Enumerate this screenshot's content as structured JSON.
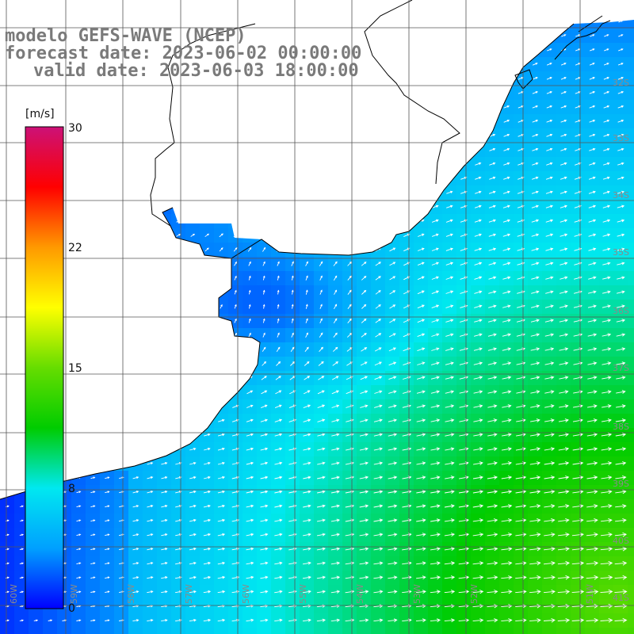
{
  "title": {
    "line1": "modelo GEFS-WAVE (NCEP)",
    "line2": "forecast date: 2023-06-02 00:00:00",
    "line3": "valid date: 2023-06-03 18:00:00"
  },
  "colorbar": {
    "unit": "[m/s]",
    "ticks": [
      "30",
      "22",
      "15",
      "8",
      "0"
    ],
    "min": 0,
    "max": 30,
    "colors": [
      "#0000ff",
      "#00a0ff",
      "#00e8f0",
      "#00cc00",
      "#66dd00",
      "#ffff00",
      "#ff9900",
      "#ff0000",
      "#cc1177"
    ]
  },
  "grid": {
    "lat_labels": [
      "32S",
      "33S",
      "34S",
      "35S",
      "36S",
      "37S",
      "38S",
      "39S",
      "40S",
      "41S"
    ],
    "lon_labels": [
      "60W",
      "59W",
      "58W",
      "57W",
      "56W",
      "55W",
      "54W",
      "53W",
      "52W",
      "51W"
    ]
  },
  "colors": {
    "land": "#ffffff",
    "coast": "#000000",
    "grid": "#555555",
    "arrow": "#ffffff"
  }
}
